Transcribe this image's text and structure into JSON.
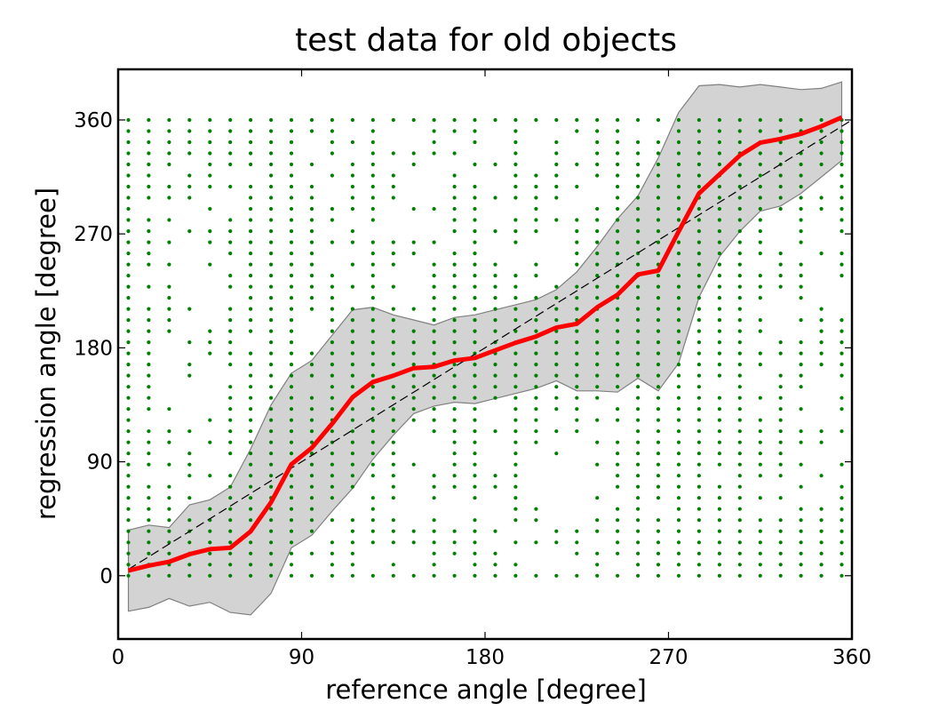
{
  "chart_data": {
    "type": "scatter",
    "title": "test data for old objects",
    "xlabel": "reference angle [degree]",
    "ylabel": "regression angle [degree]",
    "xlim": [
      0,
      360
    ],
    "ylim": [
      -50,
      400
    ],
    "xticks": [
      "0",
      "90",
      "180",
      "270",
      "360"
    ],
    "yticks": [
      "0",
      "90",
      "180",
      "270",
      "360"
    ],
    "grid": false,
    "legend": "none",
    "colors": {
      "points": "#008000",
      "mean": "#ff0000",
      "band_fill": "#d3d3d3",
      "band_edge": "#808080",
      "reference": "#000000"
    },
    "series": [
      {
        "kind": "mean",
        "x": [
          5,
          15,
          25,
          35,
          45,
          55,
          65,
          75,
          85,
          95,
          105,
          115,
          125,
          135,
          145,
          155,
          165,
          175,
          185,
          195,
          205,
          215,
          225,
          235,
          245,
          255,
          265,
          275,
          285,
          295,
          305,
          315,
          325,
          335,
          345,
          355
        ],
        "y": [
          4,
          8,
          11,
          17,
          21,
          22,
          35,
          58,
          88,
          101,
          120,
          141,
          153,
          158,
          164,
          165,
          170,
          172,
          178,
          184,
          189,
          196,
          199,
          212,
          222,
          238,
          241,
          272,
          302,
          317,
          332,
          342,
          345,
          349,
          355,
          362
        ]
      },
      {
        "kind": "band",
        "x": [
          5,
          15,
          25,
          35,
          45,
          55,
          65,
          75,
          85,
          95,
          105,
          115,
          125,
          135,
          145,
          155,
          165,
          175,
          185,
          195,
          205,
          215,
          225,
          235,
          245,
          255,
          265,
          275,
          285,
          295,
          305,
          315,
          325,
          335,
          345,
          355
        ],
        "upper": [
          36,
          40,
          38,
          56,
          60,
          70,
          100,
          135,
          160,
          170,
          190,
          210,
          212,
          206,
          202,
          198,
          204,
          206,
          210,
          214,
          218,
          226,
          240,
          260,
          282,
          300,
          330,
          366,
          387,
          388,
          386,
          388,
          386,
          384,
          385,
          390
        ],
        "lower": [
          -28,
          -25,
          -18,
          -24,
          -21,
          -29,
          -31,
          -14,
          22,
          32,
          51,
          69,
          92,
          111,
          128,
          134,
          137,
          136,
          140,
          144,
          148,
          154,
          146,
          146,
          145,
          156,
          146,
          168,
          220,
          252,
          272,
          288,
          292,
          302,
          315,
          328
        ]
      },
      {
        "kind": "reference",
        "x": [
          5,
          360
        ],
        "y": [
          5,
          360
        ]
      },
      {
        "kind": "points",
        "x": [
          5,
          15,
          25,
          35,
          45,
          55,
          65,
          75,
          85,
          95,
          105,
          115,
          125,
          135,
          145,
          155,
          165,
          175,
          185,
          195,
          205,
          215,
          225,
          235,
          245,
          255,
          265,
          275,
          285,
          295,
          305,
          315,
          325,
          335,
          345,
          355
        ],
        "y_range": [
          0,
          360
        ],
        "density": [
          0.95,
          0.75,
          0.5,
          0.4,
          0.45,
          0.7,
          0.95,
          1,
          0.95,
          0.6,
          0.75,
          0.8,
          0.65,
          0.55,
          0.35,
          0.55,
          0.7,
          0.75,
          0.55,
          0.6,
          0.5,
          0.4,
          0.45,
          0.55,
          0.85,
          0.9,
          0.9,
          1,
          1,
          0.95,
          0.95,
          0.75,
          0.7,
          0.7,
          0.55,
          0.55
        ]
      }
    ]
  }
}
